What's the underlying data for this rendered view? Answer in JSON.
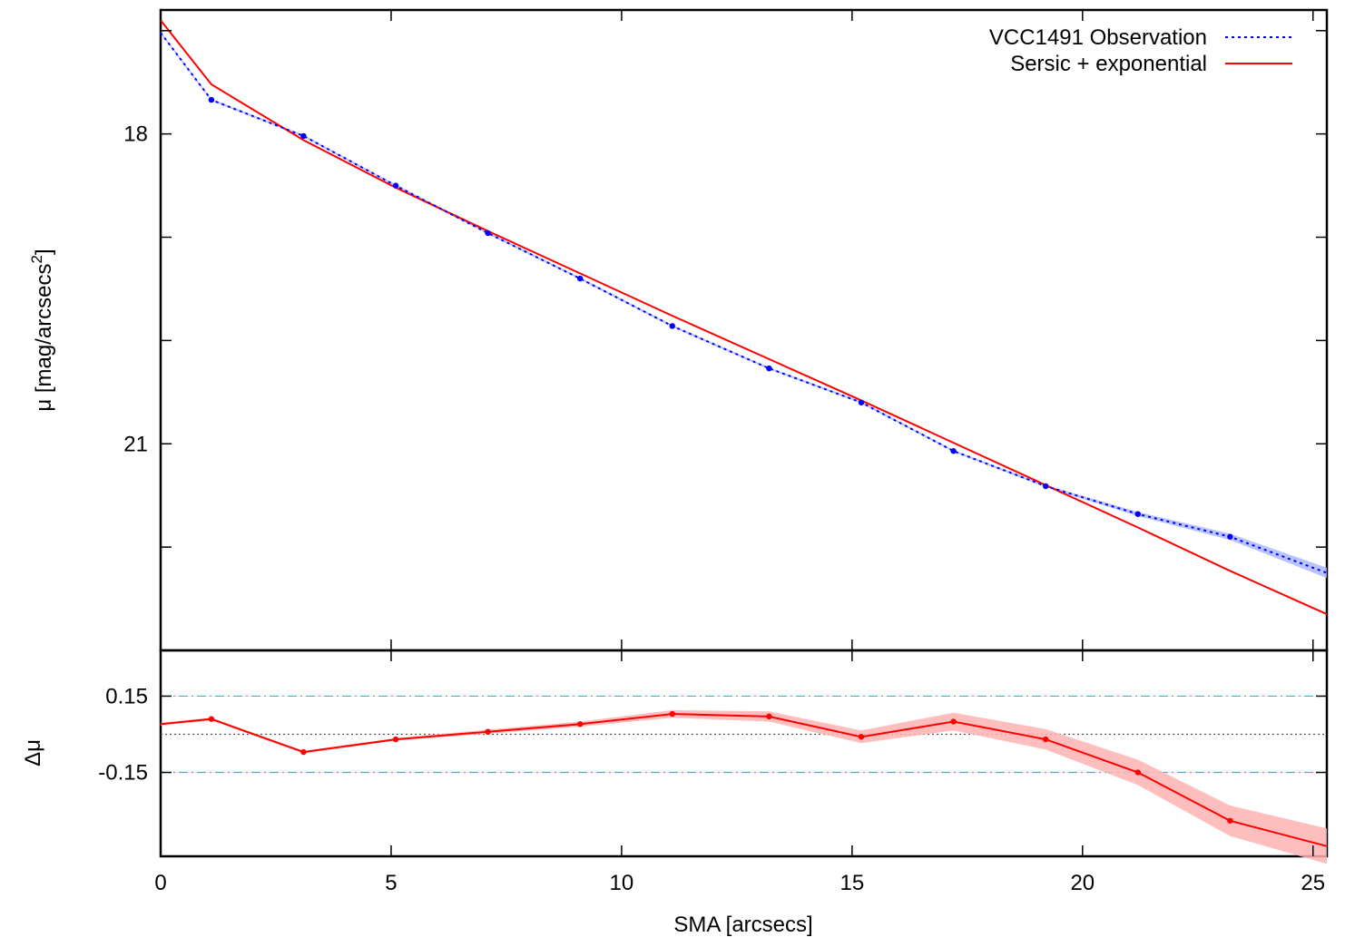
{
  "chart_data": [
    {
      "type": "line",
      "panel": "profile",
      "ylabel_main": "μ [mag/arcsecs",
      "ylabel_sup": "2",
      "ylabel_end": "]",
      "xlim": [
        0,
        25.3
      ],
      "ylim": [
        23.0,
        16.8
      ],
      "y_ticks": [
        18,
        21
      ],
      "y_tick_labels": [
        "18",
        "21"
      ],
      "y_minor_ticks": [
        17,
        19,
        20,
        22,
        23
      ],
      "grid": false,
      "legend_position": "top-right",
      "series": [
        {
          "name": "VCC1491 Observation",
          "style": "dotted",
          "color": "#0000ff",
          "band_color": "#a8b4ff",
          "x": [
            0.0,
            1.1,
            3.1,
            5.1,
            7.1,
            9.1,
            11.1,
            13.2,
            15.2,
            17.2,
            19.2,
            21.2,
            23.2,
            25.3
          ],
          "y": [
            17.02,
            17.67,
            18.02,
            18.5,
            18.96,
            19.4,
            19.86,
            20.27,
            20.6,
            21.07,
            21.41,
            21.68,
            21.9,
            22.25
          ],
          "err": [
            0.01,
            0.01,
            0.01,
            0.01,
            0.01,
            0.01,
            0.01,
            0.01,
            0.01,
            0.01,
            0.01,
            0.02,
            0.03,
            0.05
          ],
          "markers": true
        },
        {
          "name": "Sersic + exponential",
          "style": "solid",
          "color": "#ff0000",
          "x": [
            0.0,
            1.1,
            3.1,
            5.1,
            7.1,
            9.1,
            11.1,
            13.2,
            15.2,
            17.2,
            19.2,
            21.2,
            23.2,
            25.3
          ],
          "y": [
            16.9,
            17.52,
            18.06,
            18.52,
            18.94,
            19.35,
            19.76,
            20.18,
            20.58,
            20.99,
            21.4,
            21.81,
            22.23,
            22.65
          ],
          "markers": false
        }
      ]
    },
    {
      "type": "line",
      "panel": "residual",
      "xlabel": "SMA [arcsecs]",
      "ylabel": "Δμ",
      "xlim": [
        0,
        25.3
      ],
      "ylim": [
        -0.48,
        0.33
      ],
      "x_ticks": [
        0,
        5,
        10,
        15,
        20,
        25
      ],
      "x_tick_labels": [
        "0",
        "5",
        "10",
        "15",
        "20",
        "25"
      ],
      "y_ticks": [
        0.15,
        -0.15
      ],
      "y_tick_labels": [
        "0.15",
        "-0.15"
      ],
      "reference_lines": [
        {
          "y": 0.15,
          "style": "dash-dot",
          "color": "#00d0d0"
        },
        {
          "y": 0.0,
          "style": "dotted",
          "color": "#555555"
        },
        {
          "y": -0.15,
          "style": "dash-dot",
          "color": "#00d0d0"
        }
      ],
      "series": [
        {
          "name": "",
          "color": "#ff0000",
          "band_color": "#ffb3b3",
          "x": [
            0.0,
            1.1,
            3.1,
            5.1,
            7.1,
            9.1,
            11.1,
            13.2,
            15.2,
            17.2,
            19.2,
            21.2,
            23.2,
            25.3
          ],
          "y": [
            0.04,
            0.06,
            -0.07,
            -0.02,
            0.01,
            0.04,
            0.08,
            0.07,
            -0.01,
            0.05,
            -0.02,
            -0.15,
            -0.34,
            -0.44
          ],
          "err": [
            0.005,
            0.005,
            0.005,
            0.005,
            0.008,
            0.01,
            0.015,
            0.02,
            0.025,
            0.035,
            0.04,
            0.05,
            0.06,
            0.07
          ],
          "markers": true
        }
      ]
    }
  ]
}
